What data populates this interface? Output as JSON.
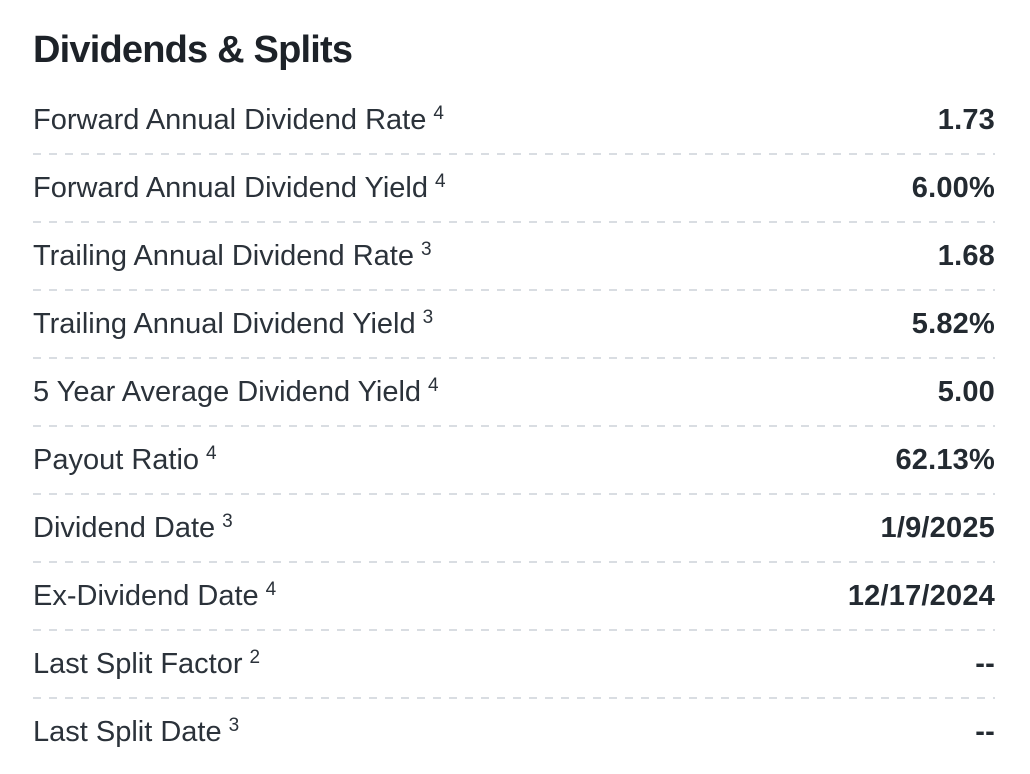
{
  "section": {
    "title": "Dividends & Splits",
    "rows": [
      {
        "label": "Forward Annual Dividend Rate",
        "footnote": "4",
        "value": "1.73"
      },
      {
        "label": "Forward Annual Dividend Yield",
        "footnote": "4",
        "value": "6.00%"
      },
      {
        "label": "Trailing Annual Dividend Rate",
        "footnote": "3",
        "value": "1.68"
      },
      {
        "label": "Trailing Annual Dividend Yield",
        "footnote": "3",
        "value": "5.82%"
      },
      {
        "label": "5 Year Average Dividend Yield",
        "footnote": "4",
        "value": "5.00"
      },
      {
        "label": "Payout Ratio",
        "footnote": "4",
        "value": "62.13%"
      },
      {
        "label": "Dividend Date",
        "footnote": "3",
        "value": "1/9/2025"
      },
      {
        "label": "Ex-Dividend Date",
        "footnote": "4",
        "value": "12/17/2024"
      },
      {
        "label": "Last Split Factor",
        "footnote": "2",
        "value": "--"
      },
      {
        "label": "Last Split Date",
        "footnote": "3",
        "value": "--"
      }
    ]
  },
  "colors": {
    "background": "#ffffff",
    "title_text": "#1d2228",
    "label_text": "#2b323a",
    "value_text": "#232a31",
    "divider": "#d9dde2"
  }
}
